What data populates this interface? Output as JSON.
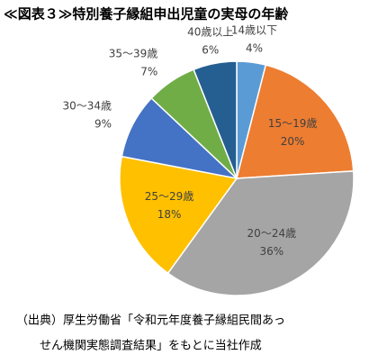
{
  "chart_data": {
    "type": "pie",
    "title": "≪図表３≫特別養子縁組申出児童の実母の年齢",
    "categories": [
      "14歳以下",
      "15～19歳",
      "20～24歳",
      "25～29歳",
      "30～34歳",
      "35～39歳",
      "40歳以上"
    ],
    "values": [
      4,
      20,
      36,
      18,
      9,
      7,
      6
    ],
    "value_labels": [
      "4%",
      "20%",
      "36%",
      "18%",
      "9%",
      "7%",
      "6%"
    ],
    "colors": [
      "#5b9bd5",
      "#ed7d31",
      "#a5a5a5",
      "#ffc000",
      "#4472c4",
      "#70ad47",
      "#255e91"
    ],
    "source": [
      "（出典）厚生労働省「令和元年度養子縁組民間あっ",
      "せん機関実態調査結果」をもとに当社作成"
    ]
  }
}
